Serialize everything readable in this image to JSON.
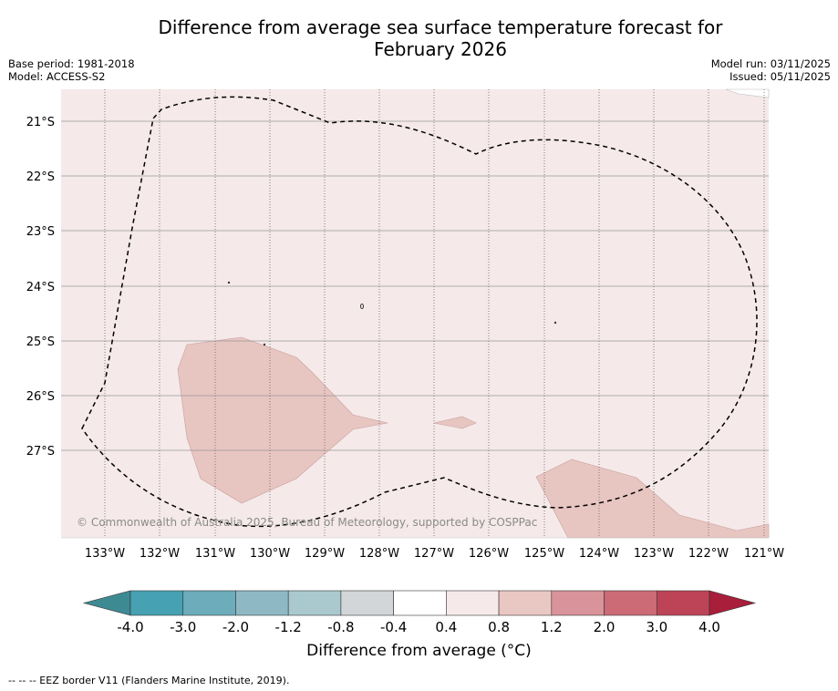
{
  "title": {
    "line1": "Difference from average sea surface temperature forecast for",
    "line2": "February 2026"
  },
  "meta_left": {
    "base_period": "Base period: 1981-2018",
    "model": "Model: ACCESS-S2"
  },
  "meta_right": {
    "model_run": "Model run: 03/11/2025",
    "issued": "Issued: 05/11/2025"
  },
  "map": {
    "lat_labels": [
      "21°S",
      "22°S",
      "23°S",
      "24°S",
      "25°S",
      "26°S",
      "27°S"
    ],
    "lon_labels": [
      "133°W",
      "132°W",
      "131°W",
      "130°W",
      "129°W",
      "128°W",
      "127°W",
      "126°W",
      "125°W",
      "124°W",
      "123°W",
      "122°W",
      "121°W"
    ],
    "background_category": "0.4 to 0.8",
    "patch_category": "0.8 to 1.2",
    "copyright": "© Commonwealth of Australia 2025, Bureau of Meteorology, supported by COSPPac"
  },
  "colorbar": {
    "ticks": [
      "-4.0",
      "-3.0",
      "-2.0",
      "-1.2",
      "-0.8",
      "-0.4",
      "0.4",
      "0.8",
      "1.2",
      "2.0",
      "3.0",
      "4.0"
    ],
    "colors": [
      "#3e8a93",
      "#46a1b2",
      "#6cacbb",
      "#8eb8c4",
      "#a9c9ce",
      "#d2d6d8",
      "#ffffff",
      "#f5e9e9",
      "#e9c7c3",
      "#d8949a",
      "#cc6b76",
      "#bd4457",
      "#a81e3b"
    ],
    "label": "Difference from average (°C)"
  },
  "footer": "--  --  -- EEZ border V11 (Flanders Marine Institute, 2019)."
}
